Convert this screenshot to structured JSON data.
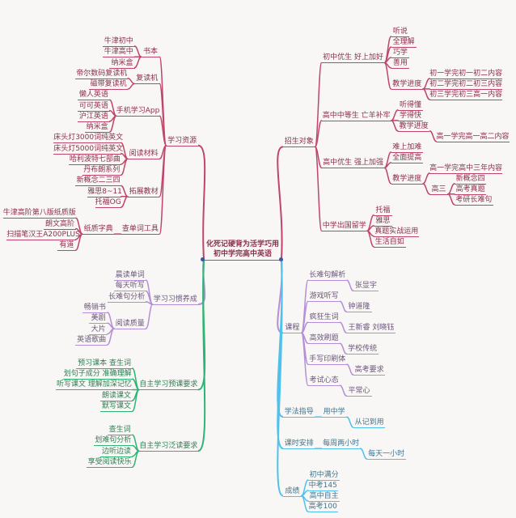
{
  "mindmap": {
    "canvas_background": "#f8f7f5",
    "center": {
      "line1": "化死记硬背为活学巧用",
      "line2": "初中学完高中英语",
      "text_color": "#8d2f4c",
      "line_color": "#bf4668",
      "dot_color": "#3b57a8"
    },
    "branches": {
      "left": [
        {
          "label": "学习资源",
          "line": "#bf4668",
          "text": "#8d2f4c",
          "children": [
            {
              "label": "书本",
              "children": [
                {
                  "label": "牛津初中"
                },
                {
                  "label": "牛津高中"
                },
                {
                  "label": "纳米盒"
                }
              ]
            },
            {
              "label": "复读机",
              "children": [
                {
                  "label": "帝尔数码复读机"
                },
                {
                  "label": "磁带复读机"
                }
              ]
            },
            {
              "label": "手机学习App",
              "children": [
                {
                  "label": "懒人英语"
                },
                {
                  "label": "可可英语"
                },
                {
                  "label": "沪江英语"
                },
                {
                  "label": "纳米盒"
                }
              ]
            },
            {
              "label": "阅读材料",
              "children": [
                {
                  "label": "床头灯3000词纯英文"
                },
                {
                  "label": "床头灯5000词纯英文"
                },
                {
                  "label": "哈利波特七部曲"
                },
                {
                  "label": "丹布朗系列"
                }
              ]
            },
            {
              "label": "拓展教材",
              "children": [
                {
                  "label": "新概念二三四"
                },
                {
                  "label": "雅思8~11"
                },
                {
                  "label": "托福OG"
                }
              ]
            },
            {
              "label": "查单词工具",
              "children": [
                {
                  "label": "纸质字典",
                  "children": [
                    {
                      "label": "牛津高阶第八版纸质版"
                    },
                    {
                      "label": "朗文高阶"
                    },
                    {
                      "label": "扫描笔汉王A200PLUS"
                    },
                    {
                      "label": "有道"
                    }
                  ]
                }
              ]
            }
          ]
        },
        {
          "label": "学习习惯养成",
          "line": "#b48ed6",
          "text": "#6a5578",
          "children": [
            {
              "label": "晨读单词"
            },
            {
              "label": "每天听写"
            },
            {
              "label": "长难句分析"
            },
            {
              "label": "阅读质量",
              "children": [
                {
                  "label": "畅销书"
                },
                {
                  "label": "美剧"
                },
                {
                  "label": "大片"
                },
                {
                  "label": "英语歌曲"
                }
              ]
            }
          ]
        },
        {
          "label": "自主学习预课要求",
          "line": "#2fb573",
          "text": "#2e7d52",
          "children": [
            {
              "label": "预习课本 查生词"
            },
            {
              "label": "划句子成分 准确理解"
            },
            {
              "label": "听写课文 理解加深记忆"
            },
            {
              "label": "朗读课文"
            },
            {
              "label": "默写课文"
            }
          ]
        },
        {
          "label": "自主学习泛读要求",
          "line": "#2fb573",
          "text": "#2e7d52",
          "children": [
            {
              "label": "查生词"
            },
            {
              "label": "划难句分析"
            },
            {
              "label": "边听边读"
            },
            {
              "label": "享受阅读快乐"
            }
          ]
        }
      ],
      "right": [
        {
          "label": "招生对象",
          "line": "#bf4668",
          "text": "#8d2f4c",
          "children": [
            {
              "label": "初中优生 好上加好",
              "children": [
                {
                  "label": "听说"
                },
                {
                  "label": "全理解"
                },
                {
                  "label": "巧学"
                },
                {
                  "label": "善用"
                },
                {
                  "label": "教学进度",
                  "children": [
                    {
                      "label": "初一学完初一初二内容"
                    },
                    {
                      "label": "初二学完初二初三内容"
                    },
                    {
                      "label": "初三学完初三高一内容"
                    }
                  ]
                }
              ]
            },
            {
              "label": "高中中等生 亡羊补牢",
              "children": [
                {
                  "label": "听得懂"
                },
                {
                  "label": "学得快"
                },
                {
                  "label": "教学进度",
                  "children": [
                    {
                      "label": "高一学完高一高二内容"
                    }
                  ]
                }
              ]
            },
            {
              "label": "高中优生 强上加强",
              "children": [
                {
                  "label": "难上加难"
                },
                {
                  "label": "全面提高"
                },
                {
                  "label": "教学进度",
                  "children": [
                    {
                      "label": "高一学完高中三年内容"
                    },
                    {
                      "label": "高三",
                      "children": [
                        {
                          "label": "新概念四"
                        },
                        {
                          "label": "高考真题"
                        },
                        {
                          "label": "考研长难句"
                        }
                      ]
                    }
                  ]
                }
              ]
            },
            {
              "label": "中学出国留学",
              "children": [
                {
                  "label": "托福"
                },
                {
                  "label": "雅思"
                },
                {
                  "label": "真题实战运用"
                },
                {
                  "label": "生活自如"
                }
              ]
            }
          ]
        },
        {
          "label": "课程",
          "line": "#b48ed6",
          "text": "#6a5578",
          "children": [
            {
              "label": "长难句解析",
              "children": [
                {
                  "label": "张显宇"
                }
              ]
            },
            {
              "label": "游戏听写",
              "children": [
                {
                  "label": "钟道隆"
                }
              ]
            },
            {
              "label": "疯狂生词",
              "children": [
                {
                  "label": "王新睿 刘晓钰"
                }
              ]
            },
            {
              "label": "高效刷题",
              "children": [
                {
                  "label": "学校传统"
                }
              ]
            },
            {
              "label": "手写印刷体",
              "children": [
                {
                  "label": "高考要求"
                }
              ]
            },
            {
              "label": "考试心态",
              "children": [
                {
                  "label": "平常心"
                }
              ]
            }
          ]
        },
        {
          "label": "学法指导",
          "line": "#4ec1ec",
          "text": "#41748e",
          "children": [
            {
              "label": "用中学",
              "children": [
                {
                  "label": "从记到用"
                }
              ]
            }
          ]
        },
        {
          "label": "课时安排",
          "line": "#4ec1ec",
          "text": "#41748e",
          "children": [
            {
              "label": "每周两小时",
              "children": [
                {
                  "label": "每天一小时"
                }
              ]
            }
          ]
        },
        {
          "label": "成绩",
          "line": "#4ec1ec",
          "text": "#41748e",
          "children": [
            {
              "label": "初中满分"
            },
            {
              "label": "中考145"
            },
            {
              "label": "高中自主"
            },
            {
              "label": "高考100"
            }
          ]
        }
      ]
    }
  }
}
